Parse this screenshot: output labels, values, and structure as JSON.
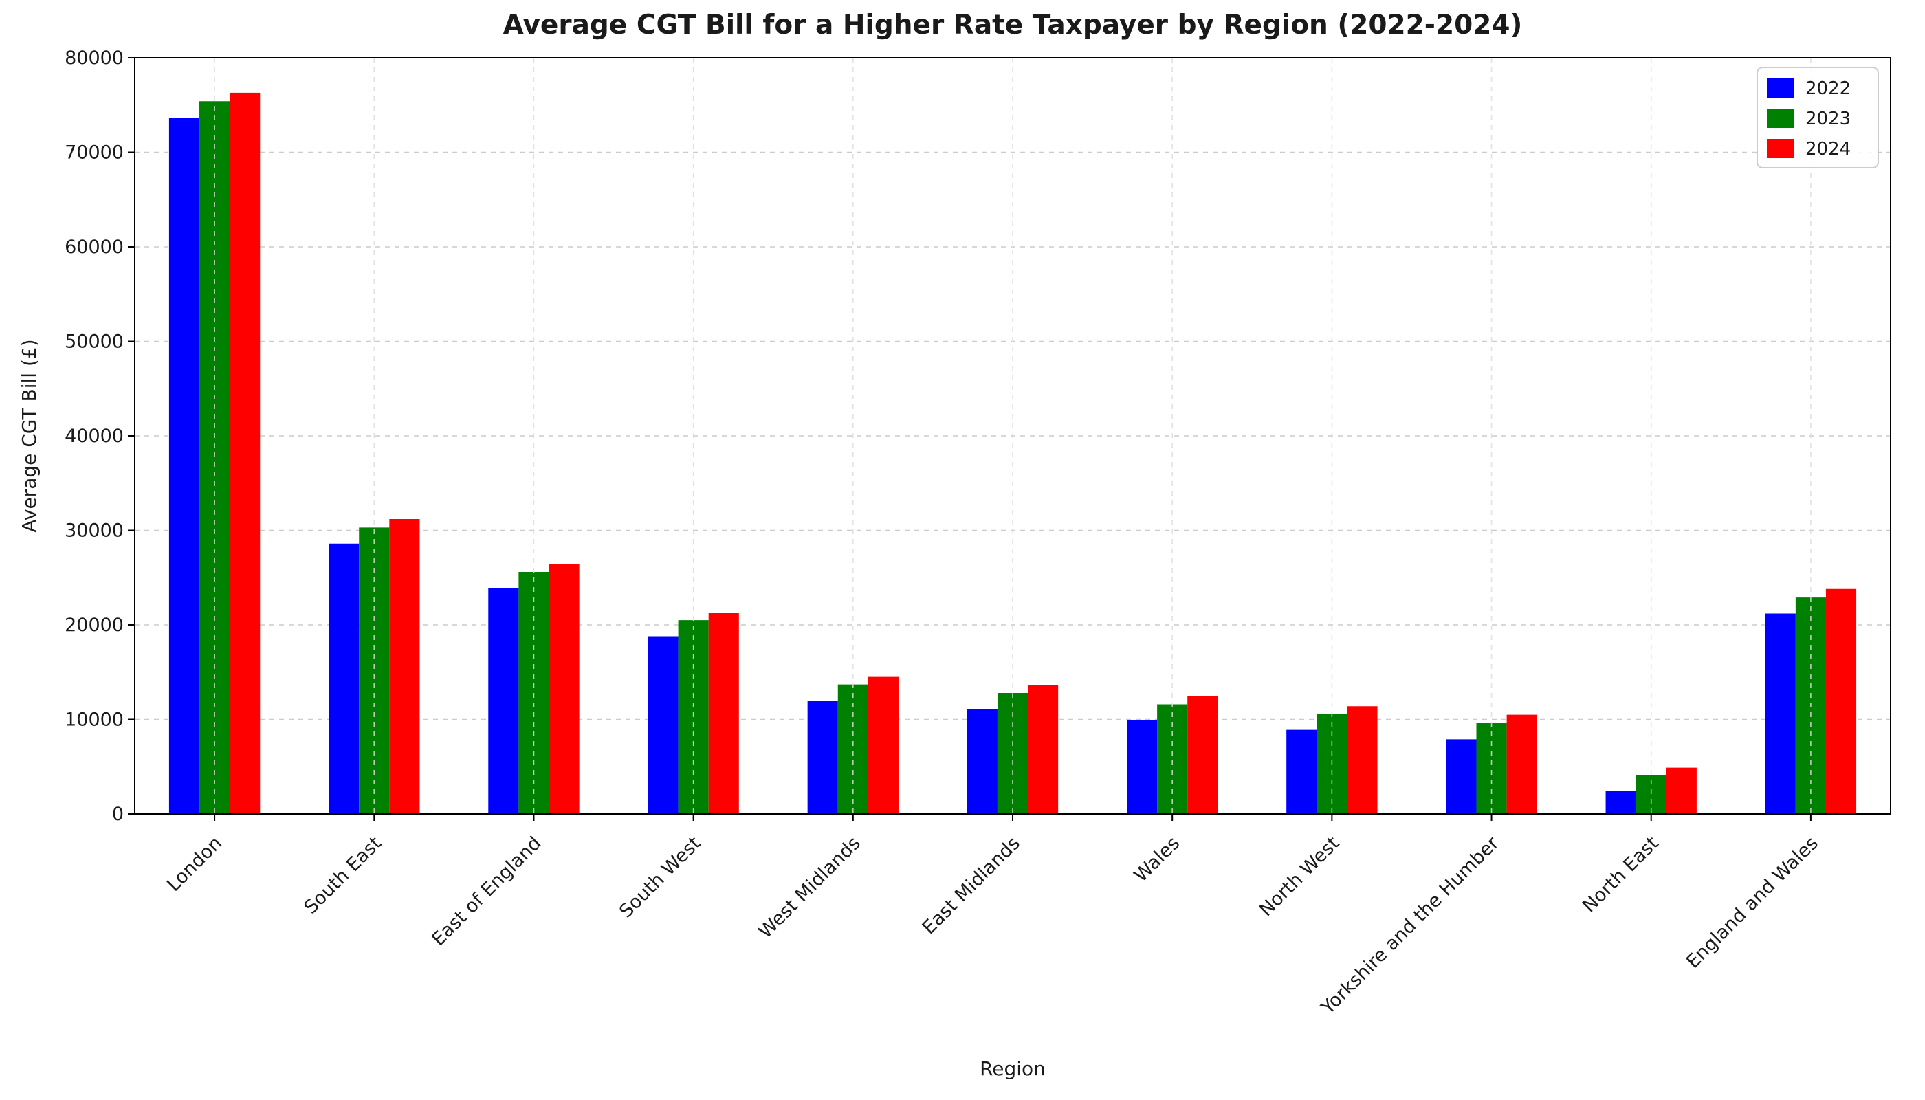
{
  "page": {
    "background": "#ffffff"
  },
  "chart_data": {
    "type": "bar",
    "title": "Average CGT Bill for a Higher Rate Taxpayer by Region (2022-2024)",
    "xlabel": "Region",
    "ylabel": "Average CGT Bill (£)",
    "ylim": [
      0,
      80000
    ],
    "ytick_step": 10000,
    "ytick_labels": [
      "0",
      "10000",
      "20000",
      "30000",
      "40000",
      "50000",
      "60000",
      "70000",
      "80000"
    ],
    "grid": {
      "horizontal": true,
      "vertical": true,
      "style": "dashed",
      "color": "#cccccc"
    },
    "legend": {
      "position": "upper right",
      "entries": [
        "2022",
        "2023",
        "2024"
      ]
    },
    "categories": [
      "London",
      "South East",
      "East of England",
      "South West",
      "West Midlands",
      "East Midlands",
      "Wales",
      "North West",
      "Yorkshire and the Humber",
      "North East",
      "England and Wales"
    ],
    "series": [
      {
        "name": "2022",
        "color": "#0000ff",
        "values": [
          73600,
          28600,
          23900,
          18800,
          12000,
          11100,
          9900,
          8900,
          7900,
          2400,
          21200
        ]
      },
      {
        "name": "2023",
        "color": "#008000",
        "values": [
          75400,
          30300,
          25600,
          20500,
          13700,
          12800,
          11600,
          10600,
          9600,
          4100,
          22900
        ]
      },
      {
        "name": "2024",
        "color": "#ff0000",
        "values": [
          76300,
          31200,
          26400,
          21300,
          14500,
          13600,
          12500,
          11400,
          10500,
          4900,
          23800
        ]
      }
    ],
    "axis_color": "#000000",
    "text_color": "#1a1a1a"
  }
}
